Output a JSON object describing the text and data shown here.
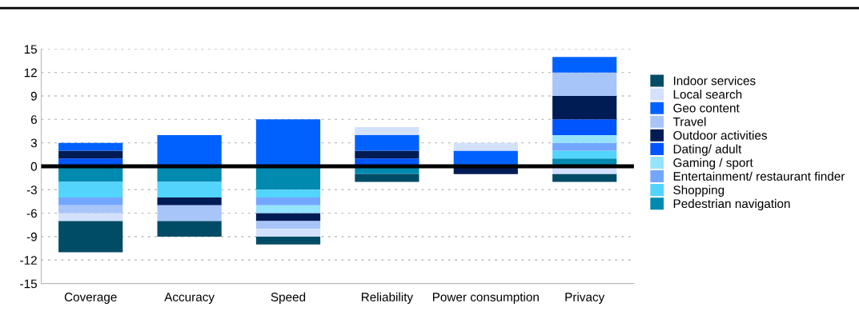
{
  "chart_data": {
    "type": "bar",
    "stacked": true,
    "categories": [
      "Coverage",
      "Accuracy",
      "Speed",
      "Reliability",
      "Power consumption",
      "Privacy"
    ],
    "series": [
      {
        "name": "Pedestrian navigation",
        "color": "#008ab0",
        "values": [
          -2,
          -2,
          -3,
          -1,
          0,
          1
        ]
      },
      {
        "name": "Shopping",
        "color": "#52d4fc",
        "values": [
          -2,
          -2,
          -1,
          0,
          0,
          1
        ]
      },
      {
        "name": "Entertainment/ restaurant finder",
        "color": "#73a6ff",
        "values": [
          -1,
          0,
          -1,
          0,
          0,
          1
        ]
      },
      {
        "name": "Gaming / sport",
        "color": "#94e3ff",
        "values": [
          0,
          0,
          -1,
          0,
          0,
          1
        ]
      },
      {
        "name": "Dating/ adult",
        "color": "#0055ff",
        "values": [
          1,
          0,
          0,
          1,
          0,
          2
        ]
      },
      {
        "name": "Outdoor activities",
        "color": "#001c55",
        "values": [
          1,
          -1,
          -1,
          1,
          -1,
          3
        ]
      },
      {
        "name": "Travel",
        "color": "#a8c5fa",
        "values": [
          -1,
          -2,
          -1,
          0,
          0,
          3
        ]
      },
      {
        "name": "Geo content",
        "color": "#0061ff",
        "values": [
          1,
          4,
          6,
          2,
          2,
          2
        ]
      },
      {
        "name": "Local search",
        "color": "#d3e1fc",
        "values": [
          -1,
          0,
          -1,
          1,
          1,
          -1
        ]
      },
      {
        "name": "Indoor services",
        "color": "#004c66",
        "values": [
          -4,
          -2,
          -1,
          -1,
          0,
          -1
        ]
      }
    ],
    "ylim": [
      -15,
      15
    ],
    "yticks": [
      -15,
      -12,
      -9,
      -6,
      -3,
      0,
      3,
      6,
      9,
      12,
      15
    ],
    "grid": "y",
    "legend": "right"
  }
}
